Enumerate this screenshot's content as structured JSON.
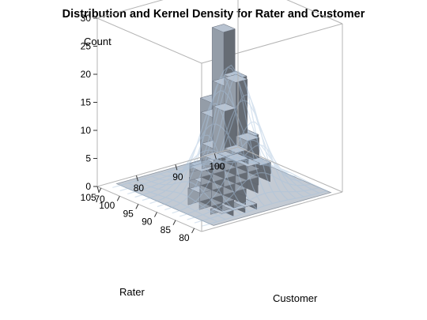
{
  "title": "Distribution and Kernel Density for Rater and Customer",
  "chart_data": {
    "type": "bar3d",
    "title": "Distribution and Kernel Density for Rater and Customer",
    "zlabel": "Count",
    "xlabel": "Rater",
    "ylabel": "Customer",
    "zlim": [
      0,
      30
    ],
    "z_ticks": [
      "0",
      "5",
      "10",
      "15",
      "20",
      "25",
      "30"
    ],
    "rater_ticks": [
      "80",
      "85",
      "90",
      "95",
      "100",
      "105"
    ],
    "customer_ticks": [
      "70",
      "80",
      "90",
      "100"
    ],
    "rater_range": [
      78,
      106
    ],
    "customer_range": [
      70,
      106
    ],
    "bin_width": 3,
    "colors": {
      "bar": "#a4aebb",
      "density": "#a8c2dc",
      "floor": "#c3cad3",
      "frame": "#b4b4b4"
    },
    "bars": [
      {
        "rater": 91,
        "customer": 88,
        "count": 29
      },
      {
        "rater": 91,
        "customer": 91,
        "count": 20
      },
      {
        "rater": 94,
        "customer": 91,
        "count": 18
      },
      {
        "rater": 94,
        "customer": 94,
        "count": 18
      },
      {
        "rater": 91,
        "customer": 85,
        "count": 17
      },
      {
        "rater": 97,
        "customer": 94,
        "count": 12
      },
      {
        "rater": 94,
        "customer": 88,
        "count": 13
      },
      {
        "rater": 88,
        "customer": 85,
        "count": 11
      },
      {
        "rater": 88,
        "customer": 88,
        "count": 10
      },
      {
        "rater": 94,
        "customer": 97,
        "count": 7
      },
      {
        "rater": 91,
        "customer": 94,
        "count": 9
      },
      {
        "rater": 88,
        "customer": 82,
        "count": 6
      },
      {
        "rater": 85,
        "customer": 82,
        "count": 4
      },
      {
        "rater": 85,
        "customer": 85,
        "count": 5
      },
      {
        "rater": 97,
        "customer": 91,
        "count": 6
      },
      {
        "rater": 97,
        "customer": 97,
        "count": 4
      },
      {
        "rater": 100,
        "customer": 97,
        "count": 2
      },
      {
        "rater": 94,
        "customer": 100,
        "count": 2
      },
      {
        "rater": 100,
        "customer": 94,
        "count": 2
      },
      {
        "rater": 82,
        "customer": 82,
        "count": 1
      },
      {
        "rater": 82,
        "customer": 79,
        "count": 1
      },
      {
        "rater": 85,
        "customer": 79,
        "count": 2
      },
      {
        "rater": 88,
        "customer": 79,
        "count": 3
      },
      {
        "rater": 88,
        "customer": 91,
        "count": 4
      },
      {
        "rater": 91,
        "customer": 97,
        "count": 3
      },
      {
        "rater": 97,
        "customer": 88,
        "count": 3
      },
      {
        "rater": 97,
        "customer": 100,
        "count": 1
      },
      {
        "rater": 100,
        "customer": 100,
        "count": 1
      },
      {
        "rater": 103,
        "customer": 97,
        "count": 1
      },
      {
        "rater": 100,
        "customer": 91,
        "count": 1
      },
      {
        "rater": 94,
        "customer": 85,
        "count": 2
      },
      {
        "rater": 82,
        "customer": 85,
        "count": 1
      }
    ],
    "density_surface": {
      "peak_rater": 91,
      "peak_customer": 90,
      "peak_count": 22,
      "rater_spread": 4,
      "customer_spread": 5
    }
  }
}
